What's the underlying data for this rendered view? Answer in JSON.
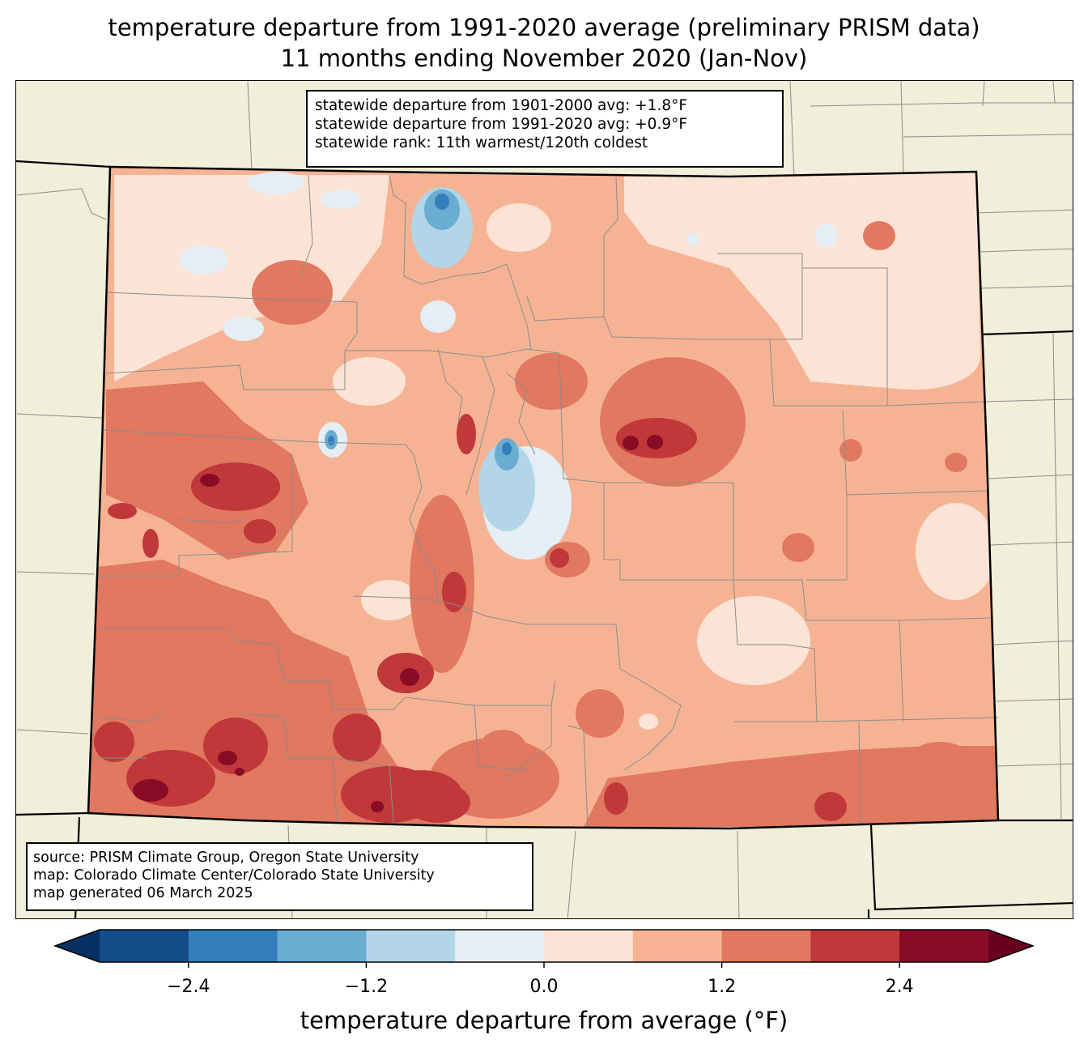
{
  "title": {
    "line1": "temperature departure from 1991-2020 average (preliminary PRISM data)",
    "line2": "11 months ending November 2020 (Jan-Nov)"
  },
  "stats": {
    "line1": "statewide departure from 1901-2000 avg: +1.8°F",
    "line2": "statewide departure from 1991-2020 avg: +0.9°F",
    "line3": "statewide rank: 11th warmest/120th coldest"
  },
  "source": {
    "line1": "source: PRISM Climate Group, Oregon State University",
    "line2": "map: Colorado Climate Center/Colorado State University",
    "line3": "map generated 06 March 2025"
  },
  "colorbar": {
    "label": "temperature departure from average (°F)",
    "ticks": [
      {
        "value": -2.4,
        "label": "−2.4"
      },
      {
        "value": -1.2,
        "label": "−1.2"
      },
      {
        "value": 0.0,
        "label": "0.0"
      },
      {
        "value": 1.2,
        "label": "1.2"
      },
      {
        "value": 2.4,
        "label": "2.4"
      }
    ],
    "range": [
      -3.0,
      3.0
    ],
    "step": 0.6,
    "under_color": "#053061",
    "over_color": "#67001f",
    "colors": [
      "#134c87",
      "#327fbb",
      "#6bacd1",
      "#b2d5e7",
      "#e4eef4",
      "#fbe3d6",
      "#f6b394",
      "#e17860",
      "#c0383a",
      "#8a0b25"
    ]
  },
  "map_colors": {
    "land": "#efefda",
    "base": "#f6b394",
    "border": "#000000",
    "county": "#8c8c8c"
  }
}
